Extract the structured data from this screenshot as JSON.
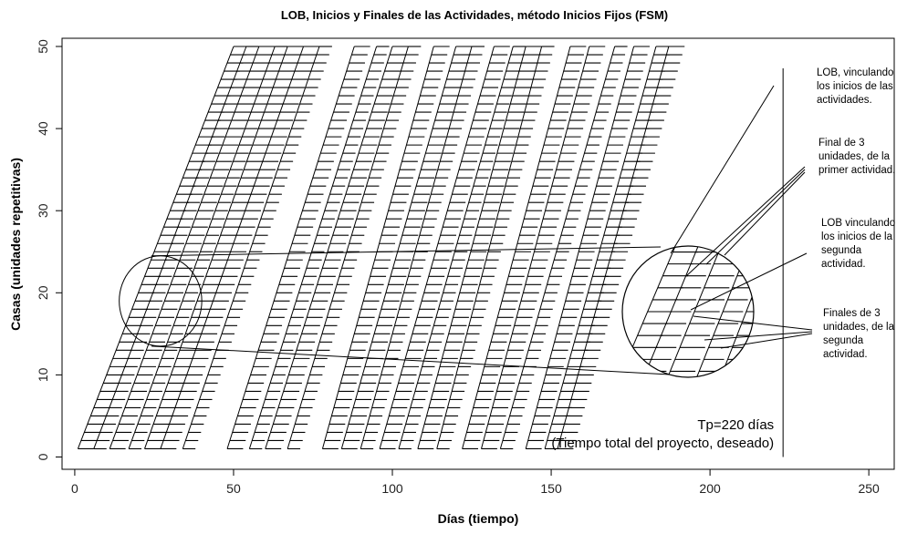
{
  "chart_data": {
    "type": "line",
    "title": "LOB, Inicios y Finales de las Actividades, método Inicios Fijos (FSM)",
    "xlabel": "Días (tiempo)",
    "ylabel": "Casas (unidades repetitivas)",
    "xlim": [
      -4,
      258
    ],
    "ylim": [
      -1.5,
      51
    ],
    "xticks": [
      0,
      50,
      100,
      150,
      200,
      250
    ],
    "yticks": [
      0,
      10,
      20,
      30,
      40,
      50
    ],
    "units": {
      "first": 1,
      "last": 50
    },
    "activities": [
      {
        "start_unit1": 1,
        "start_unit50": 50,
        "duration": 5
      },
      {
        "start_unit1": 6,
        "start_unit50": 54,
        "duration": 4
      },
      {
        "start_unit1": 11,
        "start_unit50": 58,
        "duration": 5
      },
      {
        "start_unit1": 17,
        "start_unit50": 63,
        "duration": 4
      },
      {
        "start_unit1": 22,
        "start_unit50": 67,
        "duration": 5
      },
      {
        "start_unit1": 27,
        "start_unit50": 72,
        "duration": 5
      },
      {
        "start_unit1": 34,
        "start_unit50": 77,
        "duration": 4
      },
      {
        "start_unit1": 48,
        "start_unit50": 88,
        "duration": 5
      },
      {
        "start_unit1": 55,
        "start_unit50": 95,
        "duration": 4
      },
      {
        "start_unit1": 60,
        "start_unit50": 100,
        "duration": 5
      },
      {
        "start_unit1": 67,
        "start_unit50": 105,
        "duration": 4
      },
      {
        "start_unit1": 78,
        "start_unit50": 113,
        "duration": 5
      },
      {
        "start_unit1": 84,
        "start_unit50": 120,
        "duration": 5
      },
      {
        "start_unit1": 90,
        "start_unit50": 125,
        "duration": 4
      },
      {
        "start_unit1": 96,
        "start_unit50": 132,
        "duration": 5
      },
      {
        "start_unit1": 102,
        "start_unit50": 138,
        "duration": 4
      },
      {
        "start_unit1": 108,
        "start_unit50": 142,
        "duration": 5
      },
      {
        "start_unit1": 114,
        "start_unit50": 147,
        "duration": 4
      },
      {
        "start_unit1": 122,
        "start_unit50": 156,
        "duration": 5
      },
      {
        "start_unit1": 128,
        "start_unit50": 162,
        "duration": 5
      },
      {
        "start_unit1": 134,
        "start_unit50": 170,
        "duration": 4
      },
      {
        "start_unit1": 142,
        "start_unit50": 176,
        "duration": 5
      },
      {
        "start_unit1": 148,
        "start_unit50": 183,
        "duration": 5
      },
      {
        "start_unit1": 152,
        "start_unit50": 187,
        "duration": 5
      }
    ],
    "vertical_line_x": 223,
    "tp_label": "Tp=220 días",
    "tp_sublabel": "(Tiempo total del proyecto, deseado)",
    "annotations": [
      {
        "lines": [
          "LOB, vinculando",
          "los inicios de las",
          "actividades."
        ]
      },
      {
        "lines": [
          "Final de 3",
          "unidades, de la",
          "primer actividad."
        ]
      },
      {
        "lines": [
          "LOB vinculando",
          "los inicios de la",
          "segunda",
          "actividad."
        ]
      },
      {
        "lines": [
          "Finales de 3",
          "unidades, de la",
          "segunda",
          "actividad."
        ]
      }
    ],
    "zoom": {
      "center_day": 27,
      "center_unit": 19,
      "radius_days": 13,
      "radius_units": 5.5
    }
  }
}
